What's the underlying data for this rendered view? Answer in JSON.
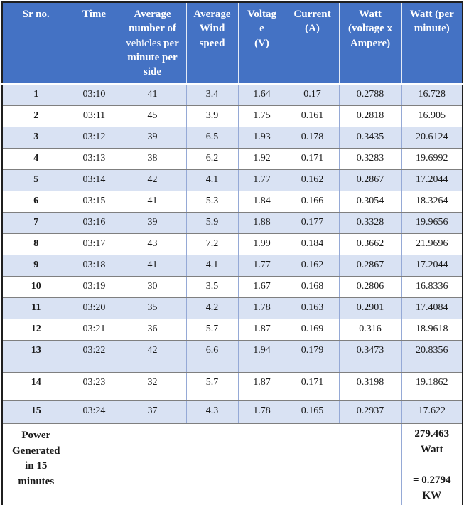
{
  "table": {
    "headers": [
      {
        "label": "Sr no."
      },
      {
        "label": "Time"
      },
      {
        "runs": [
          {
            "text": "Average number of ",
            "bold": true
          },
          {
            "text": "vehicles",
            "bold": false
          },
          {
            "text": " per minute per side",
            "bold": true
          }
        ]
      },
      {
        "label": "Average Wind speed"
      },
      {
        "label": "Voltag\ne\n(V)"
      },
      {
        "label": "Current (A)"
      },
      {
        "label": "Watt (voltage x Ampere)"
      },
      {
        "label": "Watt (per minute)"
      }
    ],
    "rows": [
      [
        "1",
        "03:10",
        "41",
        "3.4",
        "1.64",
        "0.17",
        "0.2788",
        "16.728"
      ],
      [
        "2",
        "03:11",
        "45",
        "3.9",
        "1.75",
        "0.161",
        "0.2818",
        "16.905"
      ],
      [
        "3",
        "03:12",
        "39",
        "6.5",
        "1.93",
        "0.178",
        "0.3435",
        "20.6124"
      ],
      [
        "4",
        "03:13",
        "38",
        "6.2",
        "1.92",
        "0.171",
        "0.3283",
        "19.6992"
      ],
      [
        "5",
        "03:14",
        "42",
        "4.1",
        "1.77",
        "0.162",
        "0.2867",
        "17.2044"
      ],
      [
        "6",
        "03:15",
        "41",
        "5.3",
        "1.84",
        "0.166",
        "0.3054",
        "18.3264"
      ],
      [
        "7",
        "03:16",
        "39",
        "5.9",
        "1.88",
        "0.177",
        "0.3328",
        "19.9656"
      ],
      [
        "8",
        "03:17",
        "43",
        "7.2",
        "1.99",
        "0.184",
        "0.3662",
        "21.9696"
      ],
      [
        "9",
        "03:18",
        "41",
        "4.1",
        "1.77",
        "0.162",
        "0.2867",
        "17.2044"
      ],
      [
        "10",
        "03:19",
        "30",
        "3.5",
        "1.67",
        "0.168",
        "0.2806",
        "16.8336"
      ],
      [
        "11",
        "03:20",
        "35",
        "4.2",
        "1.78",
        "0.163",
        "0.2901",
        "17.4084"
      ],
      [
        "12",
        "03:21",
        "36",
        "5.7",
        "1.87",
        "0.169",
        "0.316",
        "18.9618"
      ],
      [
        "13",
        "03:22",
        "42",
        "6.6",
        "1.94",
        "0.179",
        "0.3473",
        "20.8356"
      ],
      [
        "14",
        "03:23",
        "32",
        "5.7",
        "1.87",
        "0.171",
        "0.3198",
        "19.1862"
      ],
      [
        "15",
        "03:24",
        "37",
        "4.3",
        "1.78",
        "0.165",
        "0.2937",
        "17.622"
      ]
    ],
    "footer": {
      "label": "Power Generated in 15 minutes",
      "value_lines": [
        "279.463 Watt",
        "= 0.2794 KW"
      ]
    }
  },
  "colors": {
    "header_bg": "#4472C4",
    "header_text": "#FFFFFF",
    "stripe_bg": "#D9E2F3",
    "row_bg": "#FFFFFF",
    "vertical_border": "#95A9D6",
    "horizontal_border": "#7F7F7F",
    "outer_border": "#1F1F1F",
    "text": "#1A1A1A"
  }
}
